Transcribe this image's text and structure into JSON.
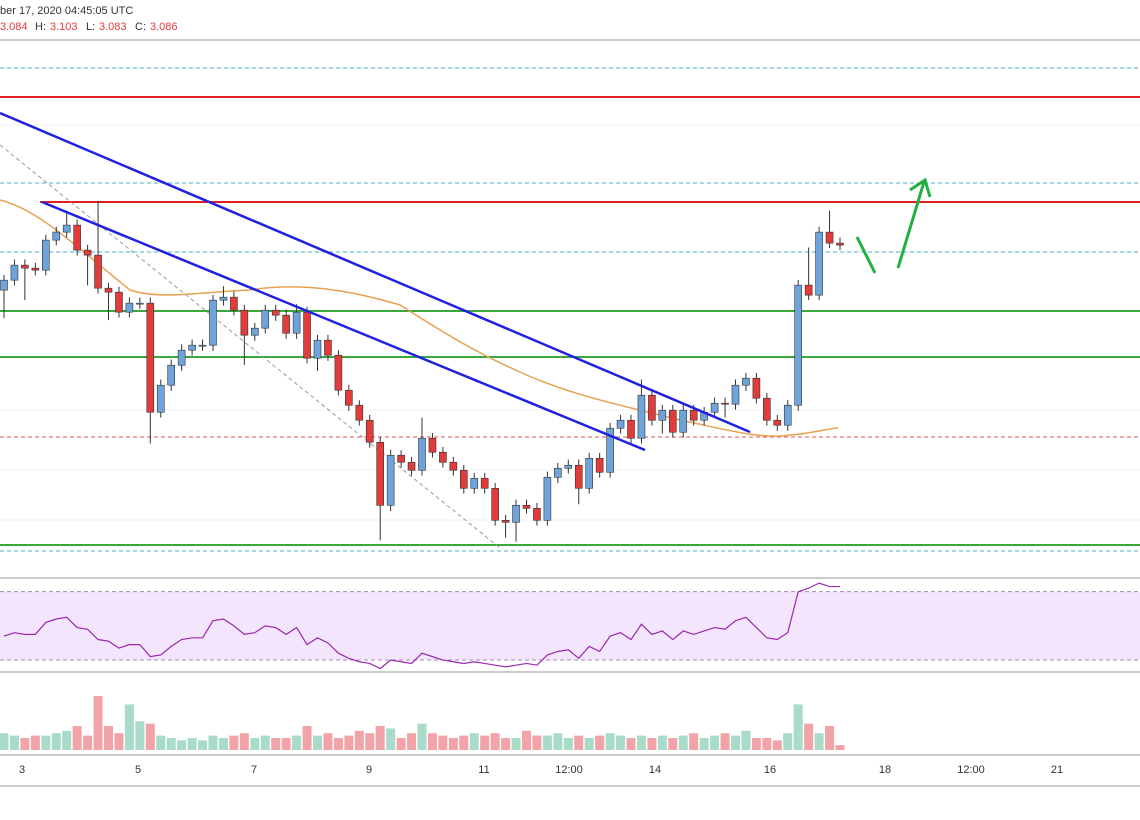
{
  "header": {
    "timestamp": "ber 17, 2020 04:45:05 UTC",
    "open": "3.084",
    "high_label": "H:",
    "high": "3.103",
    "low_label": "L:",
    "low": "3.083",
    "close_label": "C:",
    "close": "3.086"
  },
  "chart_data": {
    "type": "candlestick",
    "x_labels": [
      "3",
      "5",
      "7",
      "9",
      "11",
      "12:00",
      "14",
      "16",
      "18",
      "12:00",
      "21"
    ],
    "ylim": [
      2.584,
      3.386
    ],
    "open": [
      3.011,
      3.026,
      3.0485,
      3.044,
      3.041,
      3.086,
      3.098,
      3.1085,
      3.071,
      3.0635,
      3.014,
      3.008,
      2.978,
      2.9915,
      2.9915,
      2.828,
      2.8685,
      2.8985,
      2.921,
      2.9285,
      2.9285,
      2.996,
      3.0005,
      2.981,
      2.9435,
      2.954,
      2.981,
      2.9735,
      2.9465,
      2.978,
      2.909,
      2.936,
      2.9135,
      2.861,
      2.8385,
      2.816,
      2.783,
      2.6885,
      2.7635,
      2.753,
      2.741,
      2.789,
      2.768,
      2.753,
      2.741,
      2.714,
      2.729,
      2.714,
      2.666,
      2.663,
      2.6885,
      2.684,
      2.666,
      2.7305,
      2.744,
      2.7485,
      2.714,
      2.759,
      2.738,
      2.804,
      2.816,
      2.789,
      2.8535,
      2.816,
      2.831,
      2.798,
      2.831,
      2.816,
      2.828,
      2.8415,
      2.84,
      2.8685,
      2.879,
      2.849,
      2.816,
      2.8085,
      2.8385,
      3.0185,
      3.0035,
      3.098,
      3.0815
    ],
    "high": [
      3.034,
      3.057,
      3.057,
      3.052,
      3.094,
      3.106,
      3.13,
      3.117,
      3.079,
      3.145,
      3.022,
      3.016,
      3.0,
      3.0,
      3.0,
      2.877,
      2.907,
      2.93,
      2.937,
      2.937,
      3.004,
      3.017,
      3.009,
      2.989,
      2.962,
      2.989,
      2.989,
      2.982,
      2.99,
      2.986,
      2.944,
      2.944,
      2.921,
      2.869,
      2.846,
      2.824,
      2.791,
      2.772,
      2.771,
      2.761,
      2.82,
      2.797,
      2.776,
      2.761,
      2.749,
      2.737,
      2.737,
      2.722,
      2.674,
      2.697,
      2.697,
      2.692,
      2.739,
      2.752,
      2.757,
      2.757,
      2.767,
      2.767,
      2.812,
      2.824,
      2.824,
      2.877,
      2.862,
      2.839,
      2.839,
      2.839,
      2.839,
      2.836,
      2.85,
      2.85,
      2.877,
      2.887,
      2.887,
      2.857,
      2.824,
      2.846,
      3.026,
      3.075,
      3.106,
      3.13,
      3.09
    ],
    "low": [
      2.969,
      3.018,
      2.996,
      3.033,
      3.033,
      3.078,
      3.09,
      3.063,
      3.018,
      3.006,
      2.966,
      2.97,
      2.97,
      2.983,
      2.781,
      2.82,
      2.86,
      2.89,
      2.913,
      2.92,
      2.92,
      2.988,
      2.973,
      2.899,
      2.935,
      2.946,
      2.965,
      2.938,
      2.938,
      2.901,
      2.89,
      2.905,
      2.853,
      2.83,
      2.808,
      2.775,
      2.636,
      2.68,
      2.745,
      2.733,
      2.733,
      2.76,
      2.745,
      2.733,
      2.706,
      2.706,
      2.706,
      2.658,
      2.64,
      2.634,
      2.676,
      2.658,
      2.658,
      2.722,
      2.736,
      2.69,
      2.706,
      2.73,
      2.73,
      2.796,
      2.781,
      2.781,
      2.808,
      2.796,
      2.79,
      2.79,
      2.808,
      2.808,
      2.82,
      2.82,
      2.832,
      2.86,
      2.841,
      2.808,
      2.8,
      2.8,
      2.83,
      2.996,
      2.996,
      3.074,
      3.071
    ],
    "close": [
      3.026,
      3.0485,
      3.044,
      3.041,
      3.086,
      3.098,
      3.1085,
      3.071,
      3.0635,
      3.014,
      3.008,
      2.978,
      2.9915,
      2.9915,
      2.828,
      2.8685,
      2.8985,
      2.921,
      2.9285,
      2.9285,
      2.996,
      3.0005,
      2.981,
      2.9435,
      2.954,
      2.981,
      2.9735,
      2.9465,
      2.978,
      2.909,
      2.936,
      2.9135,
      2.861,
      2.8385,
      2.816,
      2.783,
      2.6885,
      2.7635,
      2.753,
      2.741,
      2.789,
      2.768,
      2.753,
      2.741,
      2.714,
      2.729,
      2.714,
      2.666,
      2.663,
      2.6885,
      2.684,
      2.666,
      2.7305,
      2.744,
      2.7485,
      2.714,
      2.759,
      2.738,
      2.804,
      2.816,
      2.789,
      2.8535,
      2.816,
      2.831,
      2.798,
      2.831,
      2.816,
      2.828,
      2.8415,
      2.84,
      2.8685,
      2.879,
      2.849,
      2.816,
      2.8085,
      2.8385,
      3.0185,
      3.0035,
      3.098,
      3.0815,
      3.0785
    ],
    "up_color": "#6fa3dc",
    "down_color": "#e23b3b",
    "volume": {
      "values": [
        14,
        12,
        10,
        12,
        12,
        14,
        16,
        20,
        12,
        45,
        20,
        14,
        38,
        24,
        22,
        12,
        10,
        8,
        10,
        8,
        12,
        10,
        12,
        14,
        10,
        12,
        10,
        10,
        12,
        20,
        12,
        14,
        10,
        12,
        16,
        14,
        20,
        18,
        10,
        14,
        22,
        14,
        12,
        10,
        12,
        14,
        12,
        14,
        10,
        10,
        16,
        12,
        12,
        14,
        10,
        12,
        10,
        12,
        14,
        12,
        10,
        12,
        10,
        12,
        10,
        12,
        14,
        10,
        12,
        14,
        12,
        16,
        10,
        10,
        8,
        14,
        38,
        22,
        14,
        20,
        4
      ],
      "ylim": [
        0,
        50
      ],
      "up_color": "#a8dcc8",
      "down_color": "#f2a3a8"
    },
    "rsi": {
      "values": [
        44,
        46,
        45,
        45,
        52,
        54,
        55,
        49,
        48,
        42,
        41,
        37,
        39,
        39,
        32,
        33,
        38,
        42,
        43,
        43,
        53,
        54,
        50,
        45,
        46,
        50,
        49,
        45,
        49,
        39,
        43,
        40,
        34,
        31,
        29,
        28,
        25,
        30,
        29,
        28,
        34,
        32,
        30,
        29,
        28,
        29,
        28,
        27,
        26,
        27,
        28,
        27,
        33,
        35,
        36,
        31,
        38,
        35,
        44,
        46,
        42,
        51,
        45,
        47,
        42,
        47,
        45,
        47,
        49,
        48,
        53,
        55,
        49,
        43,
        42,
        46,
        70,
        72,
        75,
        73,
        73
      ],
      "ylim": [
        23,
        78
      ],
      "bands": [
        30,
        70
      ],
      "color": "#9c27b0"
    }
  }
}
